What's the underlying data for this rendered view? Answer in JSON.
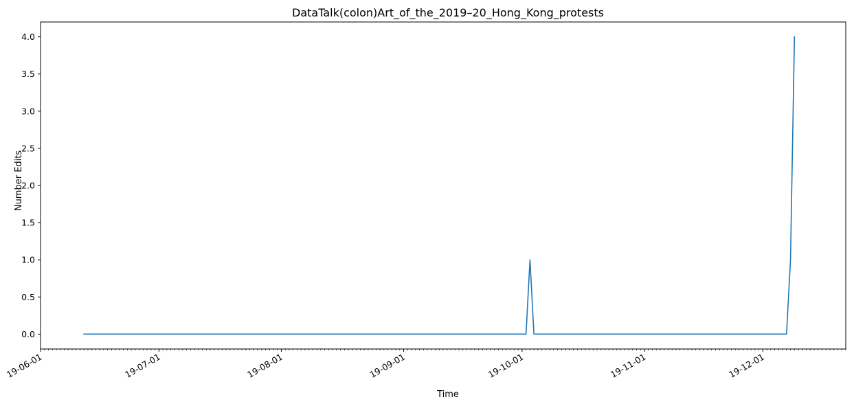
{
  "chart_data": {
    "type": "line",
    "title": "DataTalk(colon)Art_of_the_2019–20_Hong_Kong_protests",
    "xlabel": "Time",
    "ylabel": "Number Edits",
    "x_axis_type": "date",
    "xlim": [
      "2019-06-01",
      "2019-12-22"
    ],
    "ylim": [
      -0.2,
      4.2
    ],
    "x_ticks": [
      {
        "date": "2019-06-01",
        "label": "19-06-01"
      },
      {
        "date": "2019-07-01",
        "label": "19-07-01"
      },
      {
        "date": "2019-08-01",
        "label": "19-08-01"
      },
      {
        "date": "2019-09-01",
        "label": "19-09-01"
      },
      {
        "date": "2019-10-01",
        "label": "19-10-01"
      },
      {
        "date": "2019-11-01",
        "label": "19-11-01"
      },
      {
        "date": "2019-12-01",
        "label": "19-12-01"
      }
    ],
    "y_ticks": [
      {
        "value": 0.0,
        "label": "0.0"
      },
      {
        "value": 0.5,
        "label": "0.5"
      },
      {
        "value": 1.0,
        "label": "1.0"
      },
      {
        "value": 1.5,
        "label": "1.5"
      },
      {
        "value": 2.0,
        "label": "2.0"
      },
      {
        "value": 2.5,
        "label": "2.5"
      },
      {
        "value": 3.0,
        "label": "3.0"
      },
      {
        "value": 3.5,
        "label": "3.5"
      },
      {
        "value": 4.0,
        "label": "4.0"
      }
    ],
    "grid": false,
    "series": [
      {
        "color": "#1f77b4",
        "points": [
          {
            "x": "2019-06-12",
            "y": 0
          },
          {
            "x": "2019-10-02",
            "y": 0
          },
          {
            "x": "2019-10-03",
            "y": 1
          },
          {
            "x": "2019-10-04",
            "y": 0
          },
          {
            "x": "2019-12-07",
            "y": 0
          },
          {
            "x": "2019-12-08",
            "y": 1
          },
          {
            "x": "2019-12-09",
            "y": 4
          }
        ]
      }
    ]
  }
}
